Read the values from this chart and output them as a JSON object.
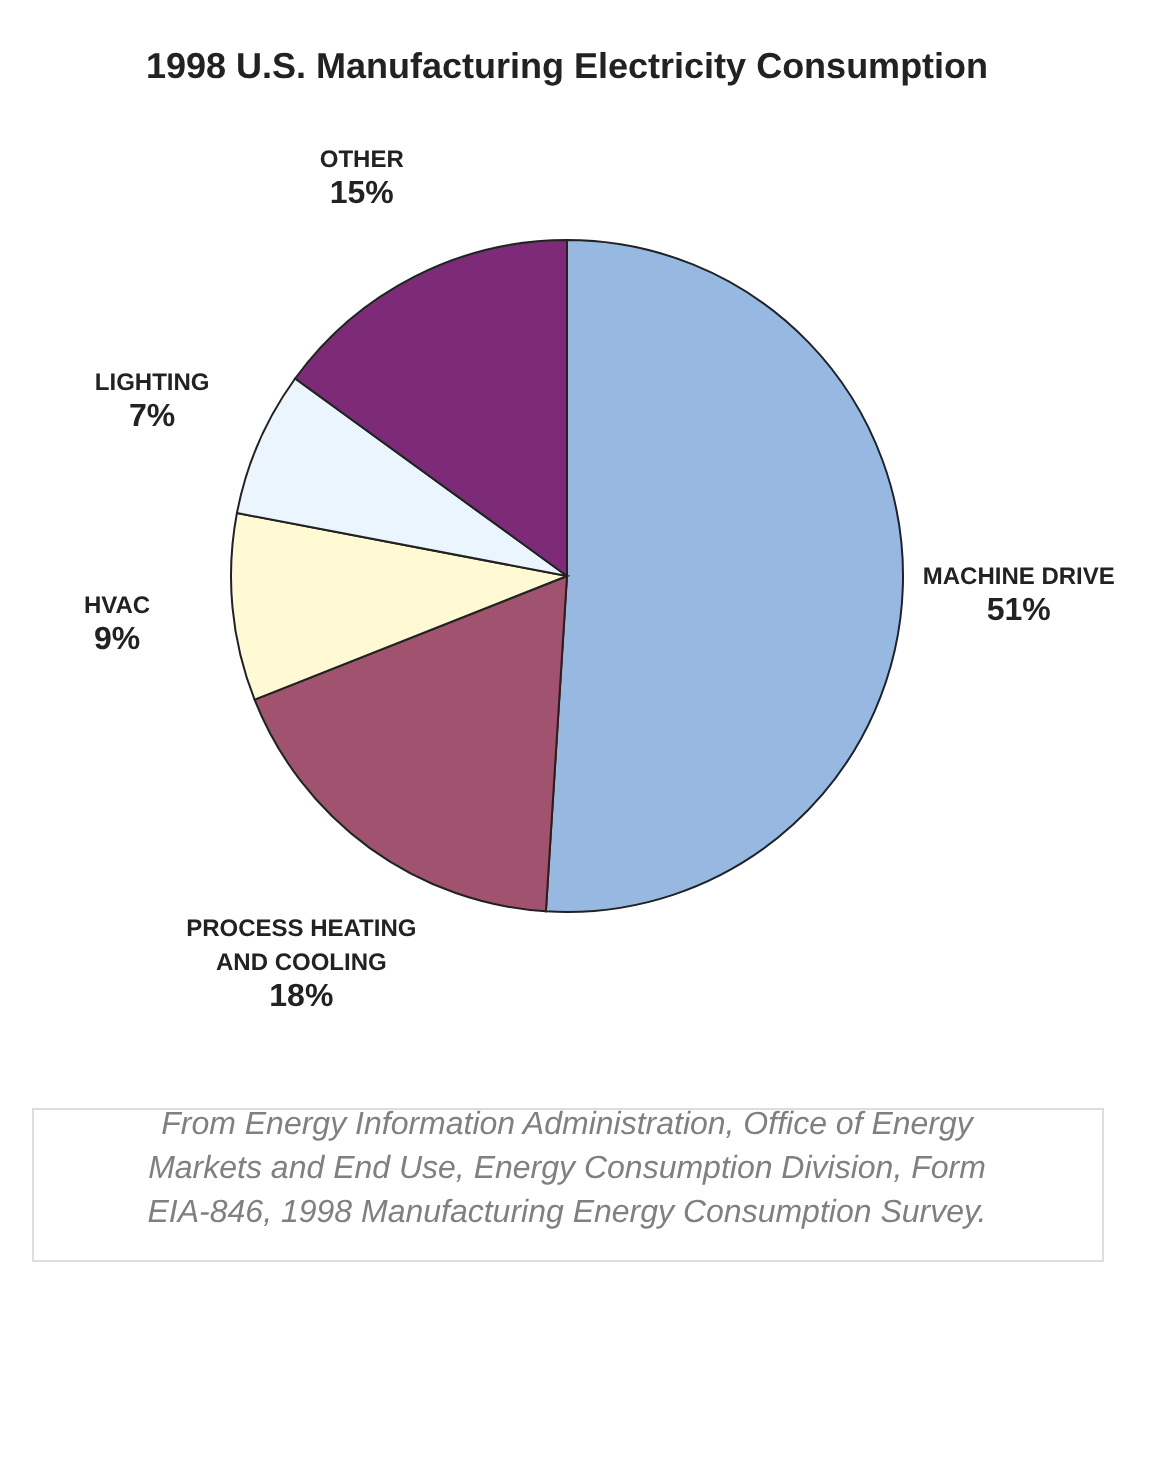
{
  "chart_data": {
    "type": "pie",
    "title": "1998 U.S. Manufacturing Electricity Consumption",
    "categories": [
      "MACHINE DRIVE",
      "PROCESS HEATING AND COOLING",
      "HVAC",
      "LIGHTING",
      "OTHER"
    ],
    "values": [
      51,
      18,
      9,
      7,
      15
    ],
    "value_labels": [
      "51%",
      "18%",
      "9%",
      "7%",
      "15%"
    ],
    "colors": [
      "#97b9e1",
      "#a1526f",
      "#fffad3",
      "#eaf5fd",
      "#7d2a78"
    ],
    "legend": false,
    "annotations": [
      "From Energy Information Administration, Office of Energy Markets and End Use, Energy Consumption Division, Form EIA-846, 1998 Manufacturing Energy Consumption Survey."
    ]
  }
}
